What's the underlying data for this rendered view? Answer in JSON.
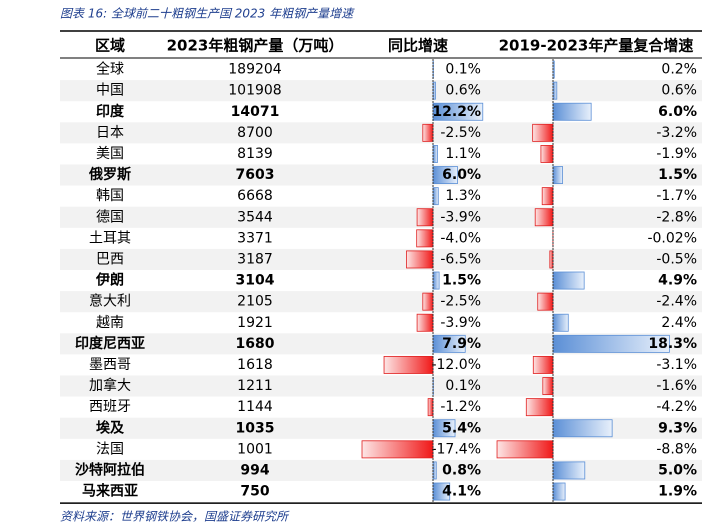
{
  "header": {
    "title": "图表 16:  全球前二十粗钢生产国 2023 年粗钢产量增速"
  },
  "table": {
    "columns": [
      "区域",
      "2023年粗钢产量（万吨）",
      "同比增速",
      "2019-2023年产量复合增速"
    ],
    "rows": [
      {
        "region": "全球",
        "output": 189204,
        "yoy": {
          "value": 0.1,
          "label": "0.1%"
        },
        "cagr": {
          "value": 0.2,
          "label": "0.2%"
        },
        "highlight": false
      },
      {
        "region": "中国",
        "output": 101908,
        "yoy": {
          "value": 0.6,
          "label": "0.6%"
        },
        "cagr": {
          "value": 0.6,
          "label": "0.6%"
        },
        "highlight": false
      },
      {
        "region": "印度",
        "output": 14071,
        "yoy": {
          "value": 12.2,
          "label": "12.2%"
        },
        "cagr": {
          "value": 6.0,
          "label": "6.0%"
        },
        "highlight": true
      },
      {
        "region": "日本",
        "output": 8700,
        "yoy": {
          "value": -2.5,
          "label": "-2.5%"
        },
        "cagr": {
          "value": -3.2,
          "label": "-3.2%"
        },
        "highlight": false
      },
      {
        "region": "美国",
        "output": 8139,
        "yoy": {
          "value": 1.1,
          "label": "1.1%"
        },
        "cagr": {
          "value": -1.9,
          "label": "-1.9%"
        },
        "highlight": false
      },
      {
        "region": "俄罗斯",
        "output": 7603,
        "yoy": {
          "value": 6.0,
          "label": "6.0%"
        },
        "cagr": {
          "value": 1.5,
          "label": "1.5%"
        },
        "highlight": true
      },
      {
        "region": "韩国",
        "output": 6668,
        "yoy": {
          "value": 1.3,
          "label": "1.3%"
        },
        "cagr": {
          "value": -1.7,
          "label": "-1.7%"
        },
        "highlight": false
      },
      {
        "region": "德国",
        "output": 3544,
        "yoy": {
          "value": -3.9,
          "label": "-3.9%"
        },
        "cagr": {
          "value": -2.8,
          "label": "-2.8%"
        },
        "highlight": false
      },
      {
        "region": "土耳其",
        "output": 3371,
        "yoy": {
          "value": -4.0,
          "label": "-4.0%"
        },
        "cagr": {
          "value": -0.02,
          "label": "-0.02%"
        },
        "highlight": false
      },
      {
        "region": "巴西",
        "output": 3187,
        "yoy": {
          "value": -6.5,
          "label": "-6.5%"
        },
        "cagr": {
          "value": -0.5,
          "label": "-0.5%"
        },
        "highlight": false
      },
      {
        "region": "伊朗",
        "output": 3104,
        "yoy": {
          "value": 1.5,
          "label": "1.5%"
        },
        "cagr": {
          "value": 4.9,
          "label": "4.9%"
        },
        "highlight": true
      },
      {
        "region": "意大利",
        "output": 2105,
        "yoy": {
          "value": -2.5,
          "label": "-2.5%"
        },
        "cagr": {
          "value": -2.4,
          "label": "-2.4%"
        },
        "highlight": false
      },
      {
        "region": "越南",
        "output": 1921,
        "yoy": {
          "value": -3.9,
          "label": "-3.9%"
        },
        "cagr": {
          "value": 2.4,
          "label": "2.4%"
        },
        "highlight": false
      },
      {
        "region": "印度尼西亚",
        "output": 1680,
        "yoy": {
          "value": 7.9,
          "label": "7.9%"
        },
        "cagr": {
          "value": 18.3,
          "label": "18.3%"
        },
        "highlight": true
      },
      {
        "region": "墨西哥",
        "output": 1618,
        "yoy": {
          "value": -12.0,
          "label": "-12.0%"
        },
        "cagr": {
          "value": -3.1,
          "label": "-3.1%"
        },
        "highlight": false
      },
      {
        "region": "加拿大",
        "output": 1211,
        "yoy": {
          "value": 0.1,
          "label": "0.1%"
        },
        "cagr": {
          "value": -1.6,
          "label": "-1.6%"
        },
        "highlight": false
      },
      {
        "region": "西班牙",
        "output": 1144,
        "yoy": {
          "value": -1.2,
          "label": "-1.2%"
        },
        "cagr": {
          "value": -4.2,
          "label": "-4.2%"
        },
        "highlight": false
      },
      {
        "region": "埃及",
        "output": 1035,
        "yoy": {
          "value": 5.4,
          "label": "5.4%"
        },
        "cagr": {
          "value": 9.3,
          "label": "9.3%"
        },
        "highlight": true
      },
      {
        "region": "法国",
        "output": 1001,
        "yoy": {
          "value": -17.4,
          "label": "-17.4%"
        },
        "cagr": {
          "value": -8.8,
          "label": "-8.8%"
        },
        "highlight": false
      },
      {
        "region": "沙特阿拉伯",
        "output": 994,
        "yoy": {
          "value": 0.8,
          "label": "0.8%"
        },
        "cagr": {
          "value": 5.0,
          "label": "5.0%"
        },
        "highlight": true
      },
      {
        "region": "马来西亚",
        "output": 750,
        "yoy": {
          "value": 4.1,
          "label": "4.1%"
        },
        "cagr": {
          "value": 1.9,
          "label": "1.9%"
        },
        "highlight": true
      }
    ]
  },
  "footer": {
    "source": "资料来源：世界钢铁协会，国盛证券研究所"
  }
}
